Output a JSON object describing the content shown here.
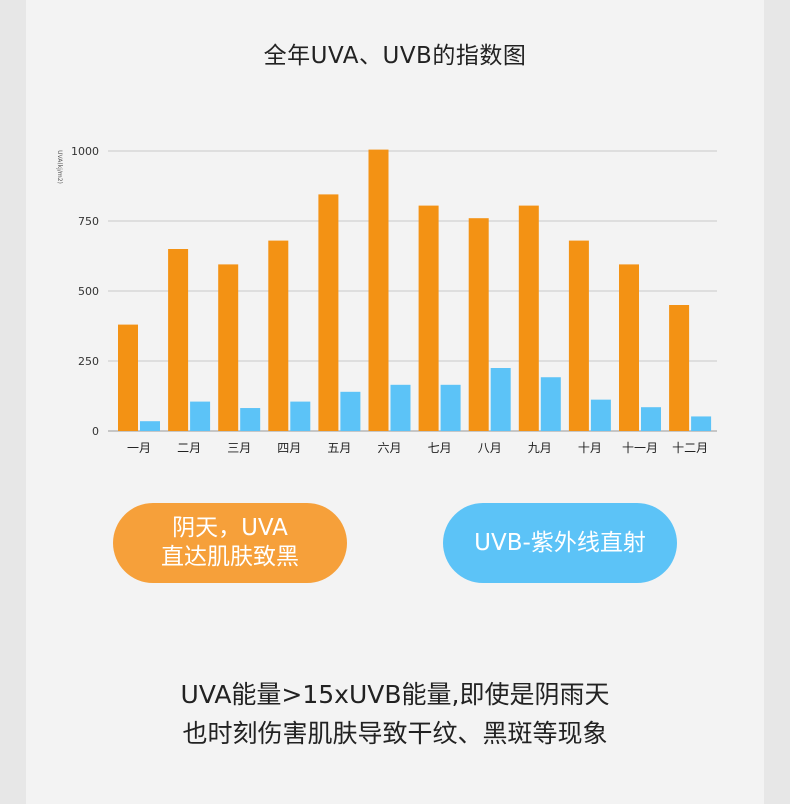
{
  "title": "全年UVA、UVB的指数图",
  "chart_data": {
    "type": "bar",
    "title": "全年UVA、UVB的指数图",
    "ylabel": "UVA(kj/m2)",
    "xlabel": "",
    "ylim": [
      0,
      1000
    ],
    "yticks": [
      0,
      250,
      500,
      750,
      1000
    ],
    "grid": true,
    "categories": [
      "一月",
      "二月",
      "三月",
      "四月",
      "五月",
      "六月",
      "七月",
      "八月",
      "九月",
      "十月",
      "十一月",
      "十二月"
    ],
    "series": [
      {
        "name": "UVA",
        "color": "#f39214",
        "values": [
          380,
          650,
          595,
          680,
          845,
          1005,
          805,
          760,
          805,
          680,
          595,
          450
        ]
      },
      {
        "name": "UVB",
        "color": "#5cc3f7",
        "values": [
          35,
          105,
          82,
          105,
          140,
          165,
          165,
          225,
          192,
          112,
          85,
          52
        ]
      }
    ]
  },
  "badges": {
    "uva_line1": "阴天，UVA",
    "uva_line2": "直达肌肤致黑",
    "uvb_label": "UVB-紫外线直射"
  },
  "footer": {
    "line1": "UVA能量>15xUVB能量,即使是阴雨天",
    "line2": "也时刻伤害肌肤导致干纹、黑斑等现象"
  }
}
